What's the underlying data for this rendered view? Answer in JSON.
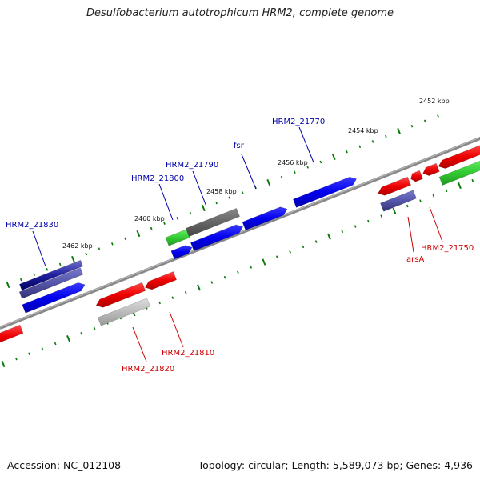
{
  "title": "Desulfobacterium autotrophicum HRM2, complete genome",
  "footer": {
    "accession": "Accession: NC_012108",
    "topology": "Topology: circular; Length: 5,589,073 bp; Genes: 4,936"
  },
  "colors": {
    "backbone": "#888888",
    "forward_label": "#0000aa",
    "reverse_label": "#cc0000",
    "tick": "#0b7a0b",
    "blue": "#0000ee",
    "red": "#ee0000",
    "green": "#33cc33",
    "gray": "#666666",
    "lightgray": "#bbbbbb",
    "slate": "#5555aa"
  },
  "ticks": [
    "2452 kbp",
    "2454 kbp",
    "2456 kbp",
    "2458 kbp",
    "2460 kbp",
    "2462 kbp"
  ],
  "forward_labels": [
    "HRM2_21830",
    "HRM2_21800",
    "HRM2_21790",
    "fsr",
    "HRM2_21770"
  ],
  "reverse_labels": [
    "HRM2_21820",
    "HRM2_21810",
    "arsA",
    "HRM2_21750"
  ]
}
